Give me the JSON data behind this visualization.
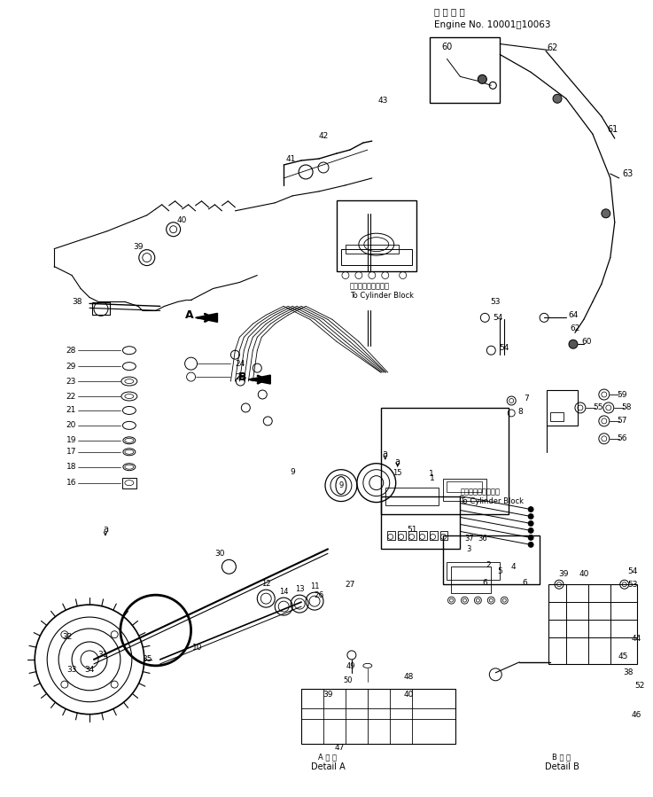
{
  "bg_color": "#ffffff",
  "title_jp": "適 用 号 機",
  "title_en": "Engine No. 10001～10063",
  "detail_a_jp": "A 詳 述",
  "detail_a_en": "Detail A",
  "detail_b_jp": "B 詳 述",
  "detail_b_en": "Detail B",
  "figsize": [
    7.37,
    8.99
  ],
  "dpi": 100
}
